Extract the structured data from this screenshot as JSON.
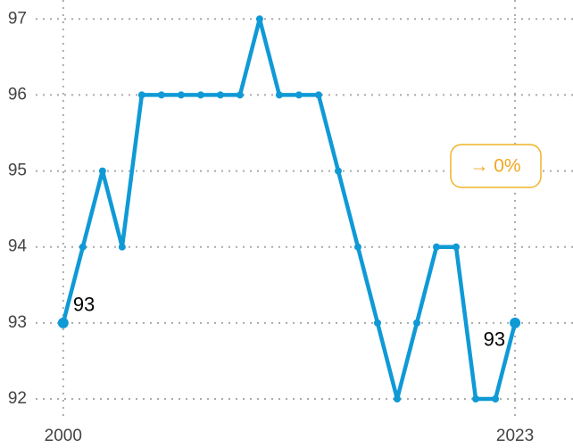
{
  "chart_data": {
    "type": "line",
    "x": [
      2000,
      2001,
      2002,
      2003,
      2004,
      2005,
      2006,
      2007,
      2008,
      2009,
      2010,
      2011,
      2012,
      2013,
      2014,
      2015,
      2016,
      2017,
      2018,
      2019,
      2020,
      2021,
      2022,
      2023
    ],
    "series": [
      {
        "color": "#0f9ad6",
        "values": [
          93,
          94,
          95,
          94,
          96,
          96,
          96,
          96,
          96,
          96,
          97,
          96,
          96,
          96,
          95,
          94,
          93,
          92,
          93,
          94,
          94,
          92,
          92,
          93
        ]
      }
    ],
    "xlim": [
      1998.6,
      2025.95
    ],
    "xticks": [
      2000,
      2023
    ],
    "ylim": [
      91.73,
      97.25
    ],
    "yticks": [
      92,
      93,
      94,
      95,
      96,
      97
    ],
    "grid": true,
    "annotation": "→ 0%"
  }
}
